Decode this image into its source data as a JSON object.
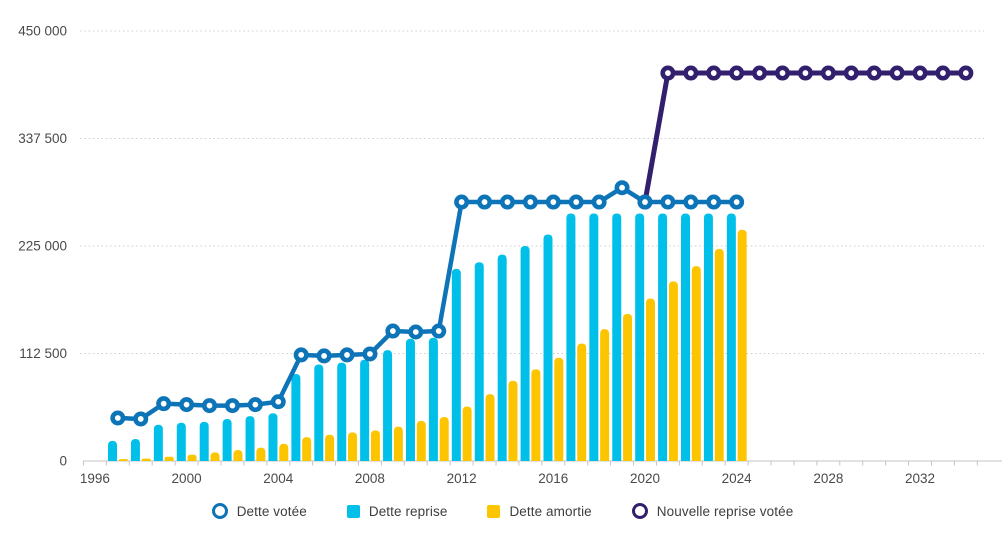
{
  "chart_data": {
    "type": "combo-bar-line",
    "title": "",
    "xlabel": "",
    "ylabel": "",
    "grid": "horizontal-dotted",
    "legend_position": "bottom",
    "x_axis": {
      "tick_labels": [
        "1996",
        "2000",
        "2004",
        "2008",
        "2012",
        "2016",
        "2020",
        "2024",
        "2028",
        "2032"
      ],
      "first_year": 1996,
      "last_year": 2034
    },
    "y_axis": {
      "ticks": [
        0,
        112500,
        225000,
        337500,
        450000
      ],
      "tick_labels": [
        "0",
        "112 500",
        "225 000",
        "337 500",
        "450 000"
      ],
      "ylim": [
        0,
        450000
      ]
    },
    "series": [
      {
        "name": "Dette votée",
        "kind": "line",
        "marker": "open-circle",
        "color": "#0d74b7",
        "years": [
          1997,
          1998,
          1999,
          2000,
          2001,
          2002,
          2003,
          2004,
          2005,
          2006,
          2007,
          2008,
          2009,
          2010,
          2011,
          2012,
          2013,
          2014,
          2015,
          2016,
          2017,
          2018,
          2019,
          2020,
          2021,
          2022,
          2023,
          2024
        ],
        "values": [
          45000,
          44000,
          60000,
          59000,
          58000,
          58000,
          59000,
          62000,
          111000,
          110000,
          111000,
          112000,
          136000,
          135000,
          136000,
          271000,
          271000,
          271000,
          271000,
          271000,
          271000,
          271000,
          286000,
          271000,
          271000,
          271000,
          271000,
          271000
        ]
      },
      {
        "name": "Dette reprise",
        "kind": "bar",
        "color": "#00c0ea",
        "years": [
          1997,
          1998,
          1999,
          2000,
          2001,
          2002,
          2003,
          2004,
          2005,
          2006,
          2007,
          2008,
          2009,
          2010,
          2011,
          2012,
          2013,
          2014,
          2015,
          2016,
          2017,
          2018,
          2019,
          2020,
          2021,
          2022,
          2023,
          2024
        ],
        "values": [
          21000,
          23000,
          38000,
          40000,
          41000,
          44000,
          47000,
          50000,
          91000,
          101000,
          103000,
          106000,
          116000,
          128000,
          129000,
          201000,
          208000,
          216000,
          225000,
          237000,
          259000,
          259000,
          259000,
          259000,
          259000,
          259000,
          259000,
          259000
        ]
      },
      {
        "name": "Dette amortie",
        "kind": "bar",
        "color": "#fdc500",
        "years": [
          1997,
          1998,
          1999,
          2000,
          2001,
          2002,
          2003,
          2004,
          2005,
          2006,
          2007,
          2008,
          2009,
          2010,
          2011,
          2012,
          2013,
          2014,
          2015,
          2016,
          2017,
          2018,
          2019,
          2020,
          2021,
          2022,
          2023,
          2024
        ],
        "values": [
          2000,
          2500,
          4500,
          6500,
          9000,
          11500,
          14000,
          18000,
          25000,
          27500,
          30000,
          32000,
          36000,
          42000,
          46000,
          57000,
          70000,
          84000,
          96000,
          108000,
          123000,
          138000,
          154000,
          170000,
          188000,
          204000,
          222000,
          242000
        ]
      },
      {
        "name": "Nouvelle reprise votée",
        "kind": "line",
        "marker": "open-circle",
        "color": "#32206e",
        "years": [
          2020,
          2021,
          2022,
          2023,
          2024,
          2025,
          2026,
          2027,
          2028,
          2029,
          2030,
          2031,
          2032,
          2033,
          2034
        ],
        "values": [
          271000,
          406000,
          406000,
          406000,
          406000,
          406000,
          406000,
          406000,
          406000,
          406000,
          406000,
          406000,
          406000,
          406000,
          406000
        ]
      }
    ]
  }
}
